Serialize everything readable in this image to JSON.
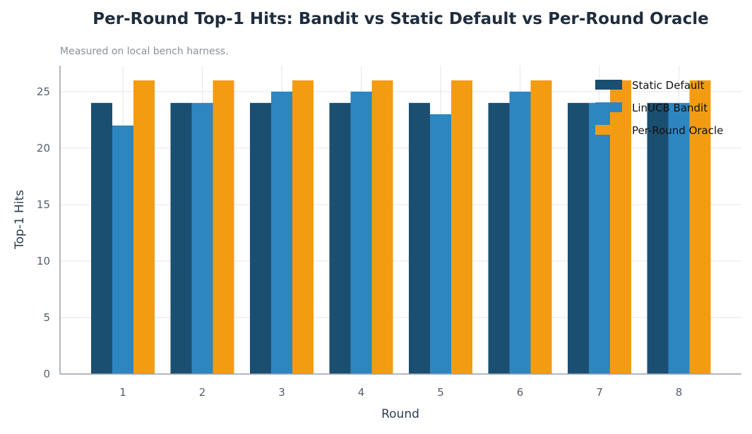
{
  "chart_data": {
    "type": "bar",
    "title": "Per-Round Top-1 Hits: Bandit vs Static Default vs Per-Round Oracle",
    "subtitle": "Measured on local bench harness.",
    "xlabel": "Round",
    "ylabel": "Top-1 Hits",
    "categories": [
      "1",
      "2",
      "3",
      "4",
      "5",
      "6",
      "7",
      "8"
    ],
    "ylim": [
      0,
      27.3
    ],
    "yticks": [
      0,
      5,
      10,
      15,
      20,
      25
    ],
    "grid": true,
    "legend_position": "top-right",
    "series": [
      {
        "name": "Static Default",
        "color": "#1b4f72",
        "values": [
          24,
          24,
          24,
          24,
          24,
          24,
          24,
          24
        ]
      },
      {
        "name": "LinUCB Bandit",
        "color": "#2e86c1",
        "values": [
          22,
          24,
          25,
          25,
          23,
          25,
          24,
          24
        ]
      },
      {
        "name": "Per-Round Oracle",
        "color": "#f39c12",
        "values": [
          26,
          26,
          26,
          26,
          26,
          26,
          26,
          26
        ]
      }
    ]
  }
}
